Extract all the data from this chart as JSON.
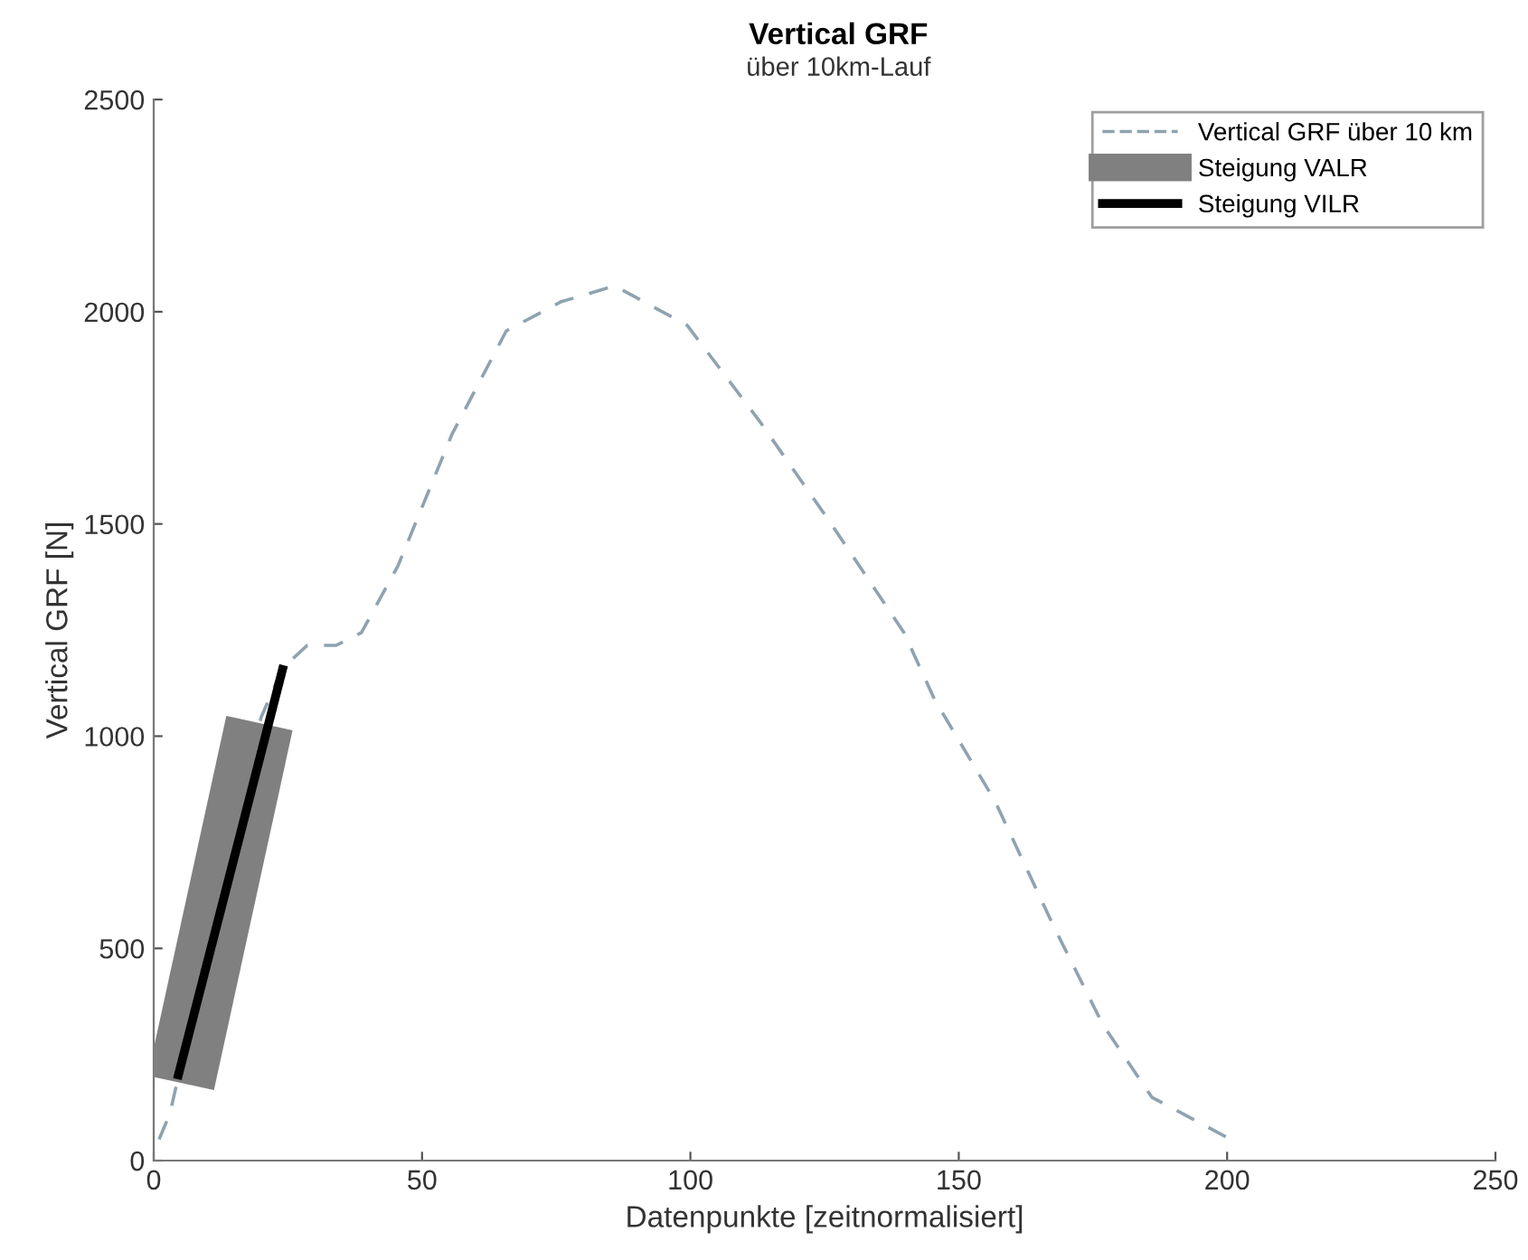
{
  "chart_data": {
    "type": "line",
    "title": "Vertical GRF",
    "subtitle": "über 10km-Lauf",
    "xlabel": "Datenpunkte [zeitnormalisiert]",
    "ylabel": "Vertical GRF [N]",
    "xlim": [
      0,
      250
    ],
    "xticks": [
      0,
      50,
      100,
      150,
      200,
      250
    ],
    "ylim": [
      0,
      2500
    ],
    "yticks": [
      0,
      500,
      1000,
      1500,
      2000,
      2500
    ],
    "grid": false,
    "legend": "top right",
    "series": [
      {
        "name": "Vertical GRF über 10 km",
        "color": "#8fa3b0",
        "line_style": "dashed",
        "x": [
          1,
          3,
          20,
          24,
          28.6,
          34,
          38.7,
          45.5,
          55.6,
          65.7,
          75.8,
          85.9,
          99.4,
          112.9,
          126.3,
          139.8,
          145.5,
          156.7,
          167.8,
          176.9,
          186,
          200.5
        ],
        "values": [
          50,
          110,
          1044,
          1160,
          1214,
          1214,
          1244,
          1401,
          1712,
          1955,
          2023,
          2061,
          1968,
          1742,
          1499,
          1244,
          1086,
          848,
          549,
          319,
          149,
          51
        ]
      },
      {
        "name": "Steigung VALR",
        "color": "#808080",
        "line_style": "solid",
        "x": [
          5.05,
          19.7
        ],
        "values": [
          183,
          1031
        ]
      },
      {
        "name": "Steigung VILR",
        "color": "#000000",
        "line_style": "solid",
        "x": [
          4.4,
          24.2
        ],
        "values": [
          192,
          1167
        ]
      }
    ]
  }
}
